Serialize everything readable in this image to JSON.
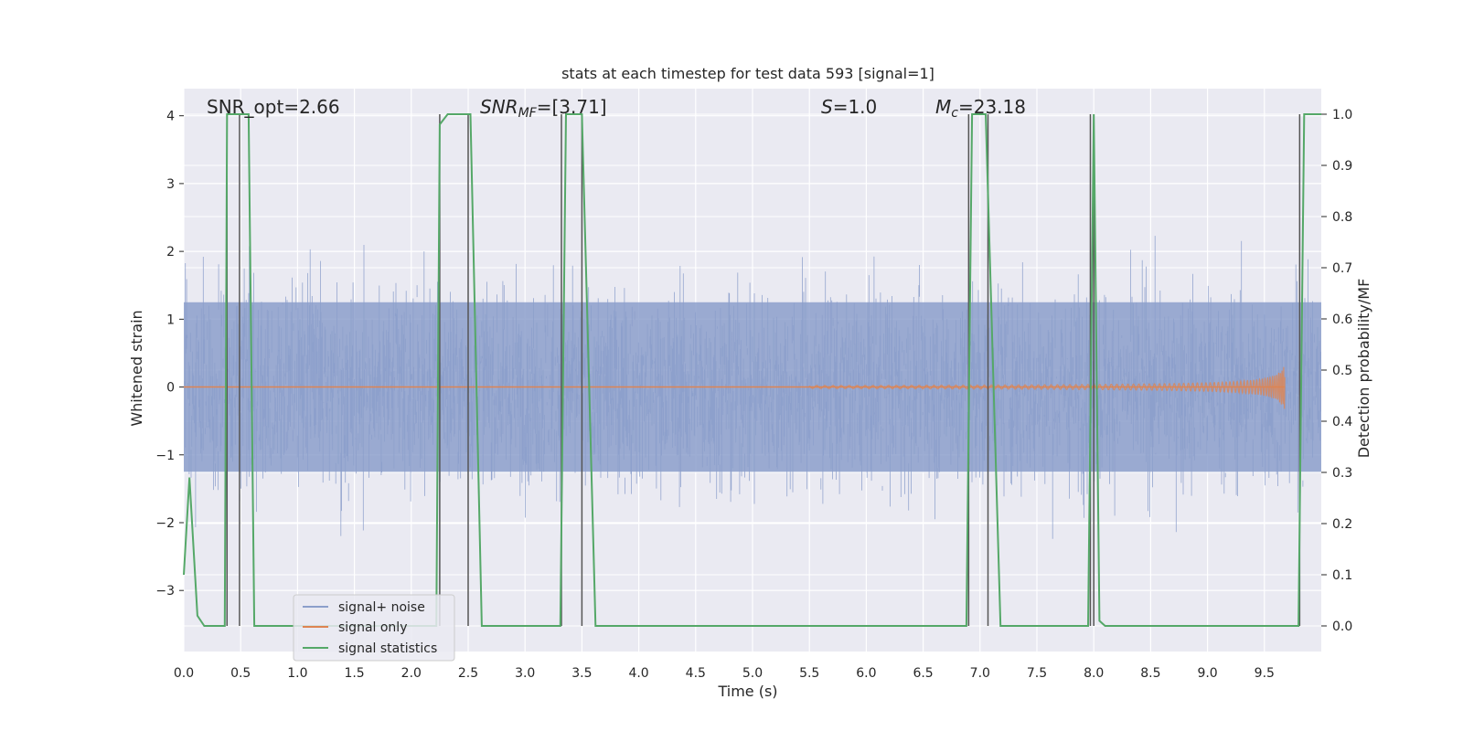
{
  "chart_data": {
    "type": "line",
    "title": "stats at each timestep for test data 593 [signal=1]",
    "xlabel": "Time (s)",
    "ylabel_left": "Whitened strain",
    "ylabel_right": "Detection probability/MF",
    "xlim": [
      0.0,
      10.0
    ],
    "ylim_left": [
      -3.9,
      4.4
    ],
    "ylim_right": [
      -0.05,
      1.05
    ],
    "x_ticks": [
      "0.0",
      "0.5",
      "1.0",
      "1.5",
      "2.0",
      "2.5",
      "3.0",
      "3.5",
      "4.0",
      "4.5",
      "5.0",
      "5.5",
      "6.0",
      "6.5",
      "7.0",
      "7.5",
      "8.0",
      "8.5",
      "9.0",
      "9.5"
    ],
    "y_ticks_left": [
      "4",
      "3",
      "2",
      "1",
      "0",
      "−1",
      "−2",
      "−3"
    ],
    "y_ticks_right": [
      "1.0",
      "0.9",
      "0.8",
      "0.7",
      "0.6",
      "0.5",
      "0.4",
      "0.3",
      "0.2",
      "0.1",
      "0.0"
    ],
    "annotations": {
      "snr_opt": "SNR_opt=2.66",
      "snr_mf_main": "SNR",
      "snr_mf_sub": "MF",
      "snr_mf_value": "=[3.71]",
      "s_main": "S",
      "s_value": "=1.0",
      "mc_main": "M",
      "mc_sub": "c",
      "mc_value": "=23.18"
    },
    "legend": {
      "placement": "lower-left",
      "entries": [
        "signal+ noise",
        "signal only",
        "signal statistics"
      ]
    },
    "colors": {
      "noise": "#8c9fcb",
      "signal": "#dd8452",
      "stats": "#55a868",
      "markers": "#555555",
      "grid": "#ffffff",
      "background": "#eaeaf2"
    },
    "series": [
      {
        "name": "signal statistics",
        "axis": "right",
        "x": [
          0.0,
          0.05,
          0.12,
          0.18,
          0.36,
          0.38,
          0.44,
          0.5,
          0.53,
          0.57,
          0.62,
          2.22,
          2.25,
          2.32,
          2.52,
          2.62,
          3.31,
          3.36,
          3.5,
          3.62,
          6.88,
          6.93,
          7.05,
          7.18,
          7.95,
          8.0,
          8.05,
          8.1,
          9.5,
          9.8,
          9.85,
          9.9,
          10.0
        ],
        "y": [
          0.1,
          0.29,
          0.02,
          0.0,
          0.0,
          1.0,
          1.0,
          1.0,
          1.0,
          1.0,
          0.0,
          0.0,
          0.98,
          1.0,
          1.0,
          0.0,
          0.0,
          1.0,
          1.0,
          0.0,
          0.0,
          1.0,
          1.0,
          0.0,
          0.0,
          1.0,
          0.01,
          0.0,
          0.0,
          0.0,
          1.0,
          1.0,
          1.0
        ]
      },
      {
        "name": "detection markers",
        "axis": "right",
        "x": [
          0.38,
          0.49,
          2.25,
          2.5,
          3.32,
          3.5,
          6.9,
          7.07,
          7.97,
          8.0,
          9.81
        ],
        "y_range": [
          0.0,
          1.0
        ]
      }
    ]
  }
}
